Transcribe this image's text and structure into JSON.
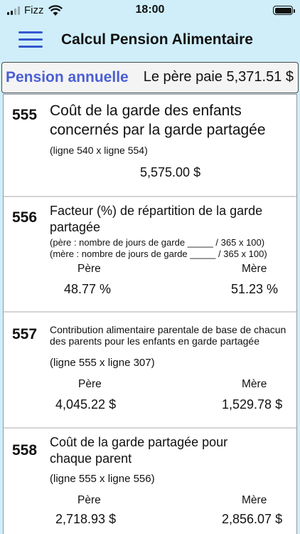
{
  "status_bar": {
    "carrier": "Fizz",
    "time": "18:00"
  },
  "header": {
    "title": "Calcul Pension Alimentaire"
  },
  "summary": {
    "label": "Pension annuelle",
    "value": "Le père paie 5,371.51 $"
  },
  "rows": [
    {
      "number": "555",
      "title": "Coût de la garde des enfants concernés par la garde partagée",
      "formula": "(ligne 540 x ligne 554)",
      "value": "5,575.00 $"
    },
    {
      "number": "556",
      "title": "Facteur (%) de répartition de la garde partagée",
      "formula_father": "(père : nombre de jours de garde _____ / 365 x 100)",
      "formula_mother": "(mère : nombre de jours de garde _____ / 365 x 100)",
      "father_label": "Père",
      "mother_label": "Mère",
      "father_value": "48.77 %",
      "mother_value": "51.23 %"
    },
    {
      "number": "557",
      "title": "Contribution alimentaire parentale de base de chacun des parents pour les enfants en garde partagée",
      "formula": "(ligne 555 x ligne 307)",
      "father_label": "Père",
      "mother_label": "Mère",
      "father_value": "4,045.22 $",
      "mother_value": "1,529.78 $"
    },
    {
      "number": "558",
      "title": "Coût de la garde partagée pour chaque parent",
      "formula": "(ligne 555 x ligne 556)",
      "father_label": "Père",
      "mother_label": "Mère",
      "father_value": "2,718.93 $",
      "mother_value": "2,856.07 $"
    }
  ]
}
